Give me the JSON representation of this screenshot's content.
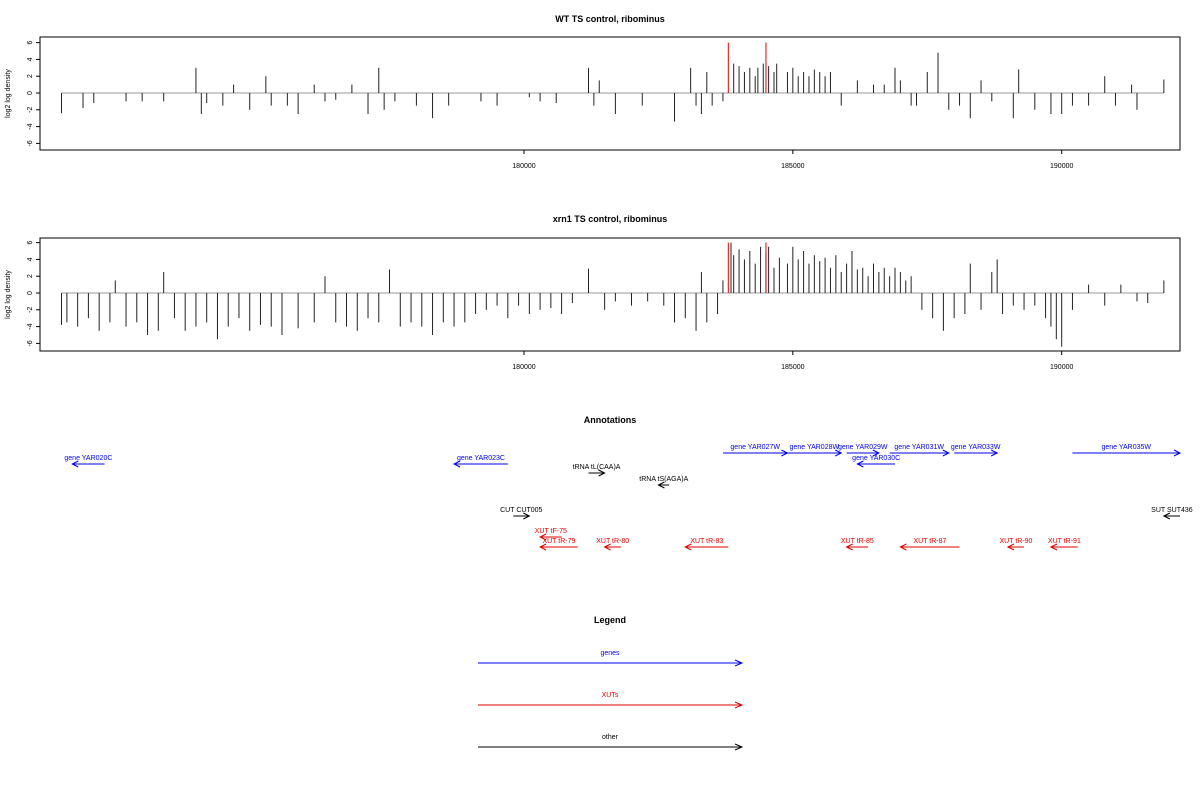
{
  "chart_data": [
    {
      "type": "bar",
      "title": "WT TS control, ribominus",
      "ylabel": "log2 log density",
      "xlim": [
        171000,
        192200
      ],
      "ylim": [
        -7,
        7
      ],
      "xticks": [
        180000,
        185000,
        190000
      ],
      "yticks": [
        -6,
        -4,
        -2,
        0,
        2,
        4,
        6
      ],
      "markers": [
        183800,
        184500
      ],
      "marker_color": "#dd0000",
      "bars": [
        [
          171400,
          -2.4
        ],
        [
          171800,
          -1.8
        ],
        [
          172000,
          -1.2
        ],
        [
          172600,
          -1.0
        ],
        [
          172900,
          -1.0
        ],
        [
          173300,
          -1.0
        ],
        [
          173900,
          3.0
        ],
        [
          174000,
          -2.5
        ],
        [
          174100,
          -1.2
        ],
        [
          174400,
          -1.5
        ],
        [
          174600,
          1.0
        ],
        [
          174900,
          -2.0
        ],
        [
          175200,
          2.0
        ],
        [
          175300,
          -1.5
        ],
        [
          175600,
          -1.5
        ],
        [
          175800,
          -2.5
        ],
        [
          176100,
          1.0
        ],
        [
          176300,
          -1.0
        ],
        [
          176500,
          -0.8
        ],
        [
          176800,
          1.0
        ],
        [
          177100,
          -2.5
        ],
        [
          177300,
          3.0
        ],
        [
          177400,
          -2.0
        ],
        [
          177600,
          -1.0
        ],
        [
          178000,
          -1.5
        ],
        [
          178300,
          -3.0
        ],
        [
          178600,
          -1.5
        ],
        [
          179200,
          -1.0
        ],
        [
          179500,
          -1.5
        ],
        [
          180100,
          -0.5
        ],
        [
          180300,
          -1.0
        ],
        [
          180600,
          -1.2
        ],
        [
          181200,
          3.0
        ],
        [
          181300,
          -1.5
        ],
        [
          181400,
          1.5
        ],
        [
          181700,
          -2.5
        ],
        [
          182200,
          -1.5
        ],
        [
          182800,
          -3.4
        ],
        [
          183100,
          3.0
        ],
        [
          183200,
          -1.5
        ],
        [
          183300,
          -2.5
        ],
        [
          183400,
          2.5
        ],
        [
          183500,
          -1.5
        ],
        [
          183700,
          -1.0
        ],
        [
          183900,
          3.5
        ],
        [
          184000,
          3.2
        ],
        [
          184100,
          2.5
        ],
        [
          184200,
          3.0
        ],
        [
          184300,
          2.0
        ],
        [
          184350,
          3.0
        ],
        [
          184450,
          3.5
        ],
        [
          184550,
          3.2
        ],
        [
          184650,
          2.5
        ],
        [
          184700,
          3.5
        ],
        [
          184900,
          2.5
        ],
        [
          185000,
          3.0
        ],
        [
          185100,
          2.0
        ],
        [
          185200,
          2.5
        ],
        [
          185300,
          2.0
        ],
        [
          185400,
          2.8
        ],
        [
          185500,
          2.5
        ],
        [
          185600,
          2.0
        ],
        [
          185700,
          2.5
        ],
        [
          185900,
          -1.5
        ],
        [
          186200,
          1.5
        ],
        [
          186500,
          1.0
        ],
        [
          186700,
          1.0
        ],
        [
          186900,
          3.0
        ],
        [
          187000,
          1.5
        ],
        [
          187200,
          -1.5
        ],
        [
          187300,
          -1.5
        ],
        [
          187500,
          2.5
        ],
        [
          187700,
          4.8
        ],
        [
          187900,
          -2.0
        ],
        [
          188100,
          -1.5
        ],
        [
          188300,
          -3.0
        ],
        [
          188500,
          1.5
        ],
        [
          188700,
          -1.0
        ],
        [
          189100,
          -3.0
        ],
        [
          189200,
          2.8
        ],
        [
          189500,
          -2.0
        ],
        [
          189800,
          -2.5
        ],
        [
          190000,
          -2.5
        ],
        [
          190200,
          -1.5
        ],
        [
          190500,
          -1.5
        ],
        [
          190800,
          2.0
        ],
        [
          191000,
          -1.5
        ],
        [
          191300,
          1.0
        ],
        [
          191400,
          -2.0
        ],
        [
          191900,
          1.6
        ]
      ]
    },
    {
      "type": "bar",
      "title": "xrn1 TS control, ribominus",
      "ylabel": "log2 log density",
      "xlim": [
        171000,
        192200
      ],
      "ylim": [
        -7,
        7
      ],
      "xticks": [
        180000,
        185000,
        190000
      ],
      "yticks": [
        -6,
        -4,
        -2,
        0,
        2,
        4,
        6
      ],
      "markers": [
        183800,
        184500
      ],
      "marker_color": "#dd0000",
      "bars": [
        [
          171400,
          -3.8
        ],
        [
          171500,
          -3.5
        ],
        [
          171700,
          -4.0
        ],
        [
          171900,
          -3.0
        ],
        [
          172100,
          -4.5
        ],
        [
          172300,
          -3.5
        ],
        [
          172400,
          1.5
        ],
        [
          172600,
          -4.0
        ],
        [
          172800,
          -3.5
        ],
        [
          173000,
          -5.0
        ],
        [
          173200,
          -4.5
        ],
        [
          173300,
          2.5
        ],
        [
          173500,
          -3.0
        ],
        [
          173700,
          -4.5
        ],
        [
          173900,
          -4.0
        ],
        [
          174100,
          -3.5
        ],
        [
          174300,
          -5.5
        ],
        [
          174500,
          -4.0
        ],
        [
          174700,
          -3.0
        ],
        [
          174900,
          -4.5
        ],
        [
          175100,
          -3.8
        ],
        [
          175300,
          -4.0
        ],
        [
          175500,
          -5.0
        ],
        [
          175800,
          -4.2
        ],
        [
          176100,
          -3.5
        ],
        [
          176300,
          2.0
        ],
        [
          176500,
          -3.5
        ],
        [
          176700,
          -4.0
        ],
        [
          176900,
          -4.5
        ],
        [
          177100,
          -3.0
        ],
        [
          177300,
          -3.5
        ],
        [
          177500,
          2.8
        ],
        [
          177700,
          -4.0
        ],
        [
          177900,
          -3.5
        ],
        [
          178100,
          -4.0
        ],
        [
          178300,
          -5.0
        ],
        [
          178500,
          -3.5
        ],
        [
          178700,
          -4.0
        ],
        [
          178900,
          -3.5
        ],
        [
          179100,
          -2.5
        ],
        [
          179300,
          -2.0
        ],
        [
          179500,
          -1.5
        ],
        [
          179700,
          -3.0
        ],
        [
          179900,
          -1.5
        ],
        [
          180100,
          -2.5
        ],
        [
          180300,
          -2.0
        ],
        [
          180500,
          -1.8
        ],
        [
          180700,
          -2.5
        ],
        [
          180900,
          -1.2
        ],
        [
          181200,
          2.9
        ],
        [
          181500,
          -2.0
        ],
        [
          181700,
          -1.0
        ],
        [
          182000,
          -1.5
        ],
        [
          182300,
          -1.0
        ],
        [
          182600,
          -1.5
        ],
        [
          182800,
          -3.5
        ],
        [
          183000,
          -3.0
        ],
        [
          183200,
          -4.5
        ],
        [
          183300,
          2.5
        ],
        [
          183400,
          -3.5
        ],
        [
          183600,
          -2.5
        ],
        [
          183700,
          1.5
        ],
        [
          183850,
          6.0
        ],
        [
          183900,
          4.5
        ],
        [
          184000,
          5.2
        ],
        [
          184100,
          4.0
        ],
        [
          184200,
          5.0
        ],
        [
          184300,
          3.5
        ],
        [
          184400,
          5.5
        ],
        [
          184500,
          4.8
        ],
        [
          184550,
          5.5
        ],
        [
          184650,
          3.0
        ],
        [
          184750,
          4.2
        ],
        [
          184900,
          3.5
        ],
        [
          185000,
          5.5
        ],
        [
          185100,
          4.0
        ],
        [
          185200,
          5.0
        ],
        [
          185300,
          3.5
        ],
        [
          185400,
          4.5
        ],
        [
          185500,
          3.8
        ],
        [
          185600,
          4.2
        ],
        [
          185700,
          3.0
        ],
        [
          185800,
          4.5
        ],
        [
          185900,
          2.5
        ],
        [
          186000,
          3.5
        ],
        [
          186100,
          5.0
        ],
        [
          186200,
          2.8
        ],
        [
          186300,
          3.0
        ],
        [
          186400,
          2.0
        ],
        [
          186500,
          3.5
        ],
        [
          186600,
          2.5
        ],
        [
          186700,
          3.0
        ],
        [
          186800,
          2.0
        ],
        [
          186900,
          3.0
        ],
        [
          187000,
          2.5
        ],
        [
          187100,
          1.5
        ],
        [
          187200,
          2.0
        ],
        [
          187400,
          -2.0
        ],
        [
          187600,
          -3.0
        ],
        [
          187800,
          -4.5
        ],
        [
          188000,
          -3.0
        ],
        [
          188200,
          -2.5
        ],
        [
          188300,
          3.5
        ],
        [
          188500,
          -2.0
        ],
        [
          188700,
          2.5
        ],
        [
          188800,
          4.0
        ],
        [
          188900,
          -2.5
        ],
        [
          189100,
          -1.5
        ],
        [
          189300,
          -2.0
        ],
        [
          189500,
          -1.5
        ],
        [
          189700,
          -3.0
        ],
        [
          189800,
          -4.0
        ],
        [
          189900,
          -5.5
        ],
        [
          190000,
          -6.4
        ],
        [
          190200,
          -2.0
        ],
        [
          190500,
          1.0
        ],
        [
          190800,
          -1.5
        ],
        [
          191100,
          1.0
        ],
        [
          191400,
          -1.0
        ],
        [
          191600,
          -1.2
        ],
        [
          191900,
          1.5
        ]
      ]
    }
  ],
  "annotations": {
    "title": "Annotations",
    "items": [
      {
        "label": "gene YAR020C",
        "start": 171600,
        "end": 172200,
        "dir": "left",
        "color": "#0000ee",
        "row": 0
      },
      {
        "label": "gene YAR023C",
        "start": 178700,
        "end": 179700,
        "dir": "left",
        "color": "#0000ee",
        "row": 0
      },
      {
        "label": "tRNA tL(CAA)A",
        "start": 181200,
        "end": 181500,
        "dir": "right",
        "color": "#000000",
        "row": 1
      },
      {
        "label": "tRNA tS(AGA)A",
        "start": 182500,
        "end": 182700,
        "dir": "left",
        "color": "#000000",
        "row": 2
      },
      {
        "label": "gene YAR027W",
        "start": 183700,
        "end": 184900,
        "dir": "right",
        "color": "#0000ee",
        "row": "top"
      },
      {
        "label": "gene YAR028W",
        "start": 184900,
        "end": 185900,
        "dir": "right",
        "color": "#0000ee",
        "row": "top"
      },
      {
        "label": "gene YAR029W",
        "start": 186000,
        "end": 186600,
        "dir": "right",
        "color": "#0000ee",
        "row": "top"
      },
      {
        "label": "gene YAR030C",
        "start": 186200,
        "end": 186900,
        "dir": "left",
        "color": "#0000ee",
        "row": "top2"
      },
      {
        "label": "gene YAR031W",
        "start": 186800,
        "end": 187900,
        "dir": "right",
        "color": "#0000ee",
        "row": "top"
      },
      {
        "label": "gene YAR033W",
        "start": 188000,
        "end": 188800,
        "dir": "right",
        "color": "#0000ee",
        "row": "top"
      },
      {
        "label": "gene YAR035W",
        "start": 190200,
        "end": 192200,
        "dir": "right",
        "color": "#0000ee",
        "row": "top"
      },
      {
        "label": "CUT CUT005",
        "start": 179800,
        "end": 180100,
        "dir": "right",
        "color": "#000000",
        "row": 3
      },
      {
        "label": "SUT SUT436",
        "start": 191900,
        "end": 192200,
        "dir": "left",
        "color": "#000000",
        "row": 3
      },
      {
        "label": "XUT tF-75",
        "start": 180300,
        "end": 180700,
        "dir": "left",
        "color": "#dd0000",
        "row": 4
      },
      {
        "label": "XUT tR-79",
        "start": 180300,
        "end": 181000,
        "dir": "left",
        "color": "#dd0000",
        "row": 5
      },
      {
        "label": "XUT tR-80",
        "start": 181500,
        "end": 181800,
        "dir": "left",
        "color": "#dd0000",
        "row": 5
      },
      {
        "label": "XUT tR-83",
        "start": 183000,
        "end": 183800,
        "dir": "left",
        "color": "#dd0000",
        "row": 5
      },
      {
        "label": "XUT tR-85",
        "start": 186000,
        "end": 186400,
        "dir": "left",
        "color": "#dd0000",
        "row": 5
      },
      {
        "label": "XUT tR-87",
        "start": 187000,
        "end": 188100,
        "dir": "left",
        "color": "#dd0000",
        "row": 5
      },
      {
        "label": "XUT tR-90",
        "start": 189000,
        "end": 189300,
        "dir": "left",
        "color": "#dd0000",
        "row": 5
      },
      {
        "label": "XUT tR-91",
        "start": 189800,
        "end": 190300,
        "dir": "left",
        "color": "#dd0000",
        "row": 5
      }
    ]
  },
  "legend": {
    "title": "Legend",
    "items": [
      {
        "label": "genes",
        "color": "#0000ee"
      },
      {
        "label": "XUTs",
        "color": "#dd0000"
      },
      {
        "label": "other",
        "color": "#000000"
      }
    ]
  }
}
